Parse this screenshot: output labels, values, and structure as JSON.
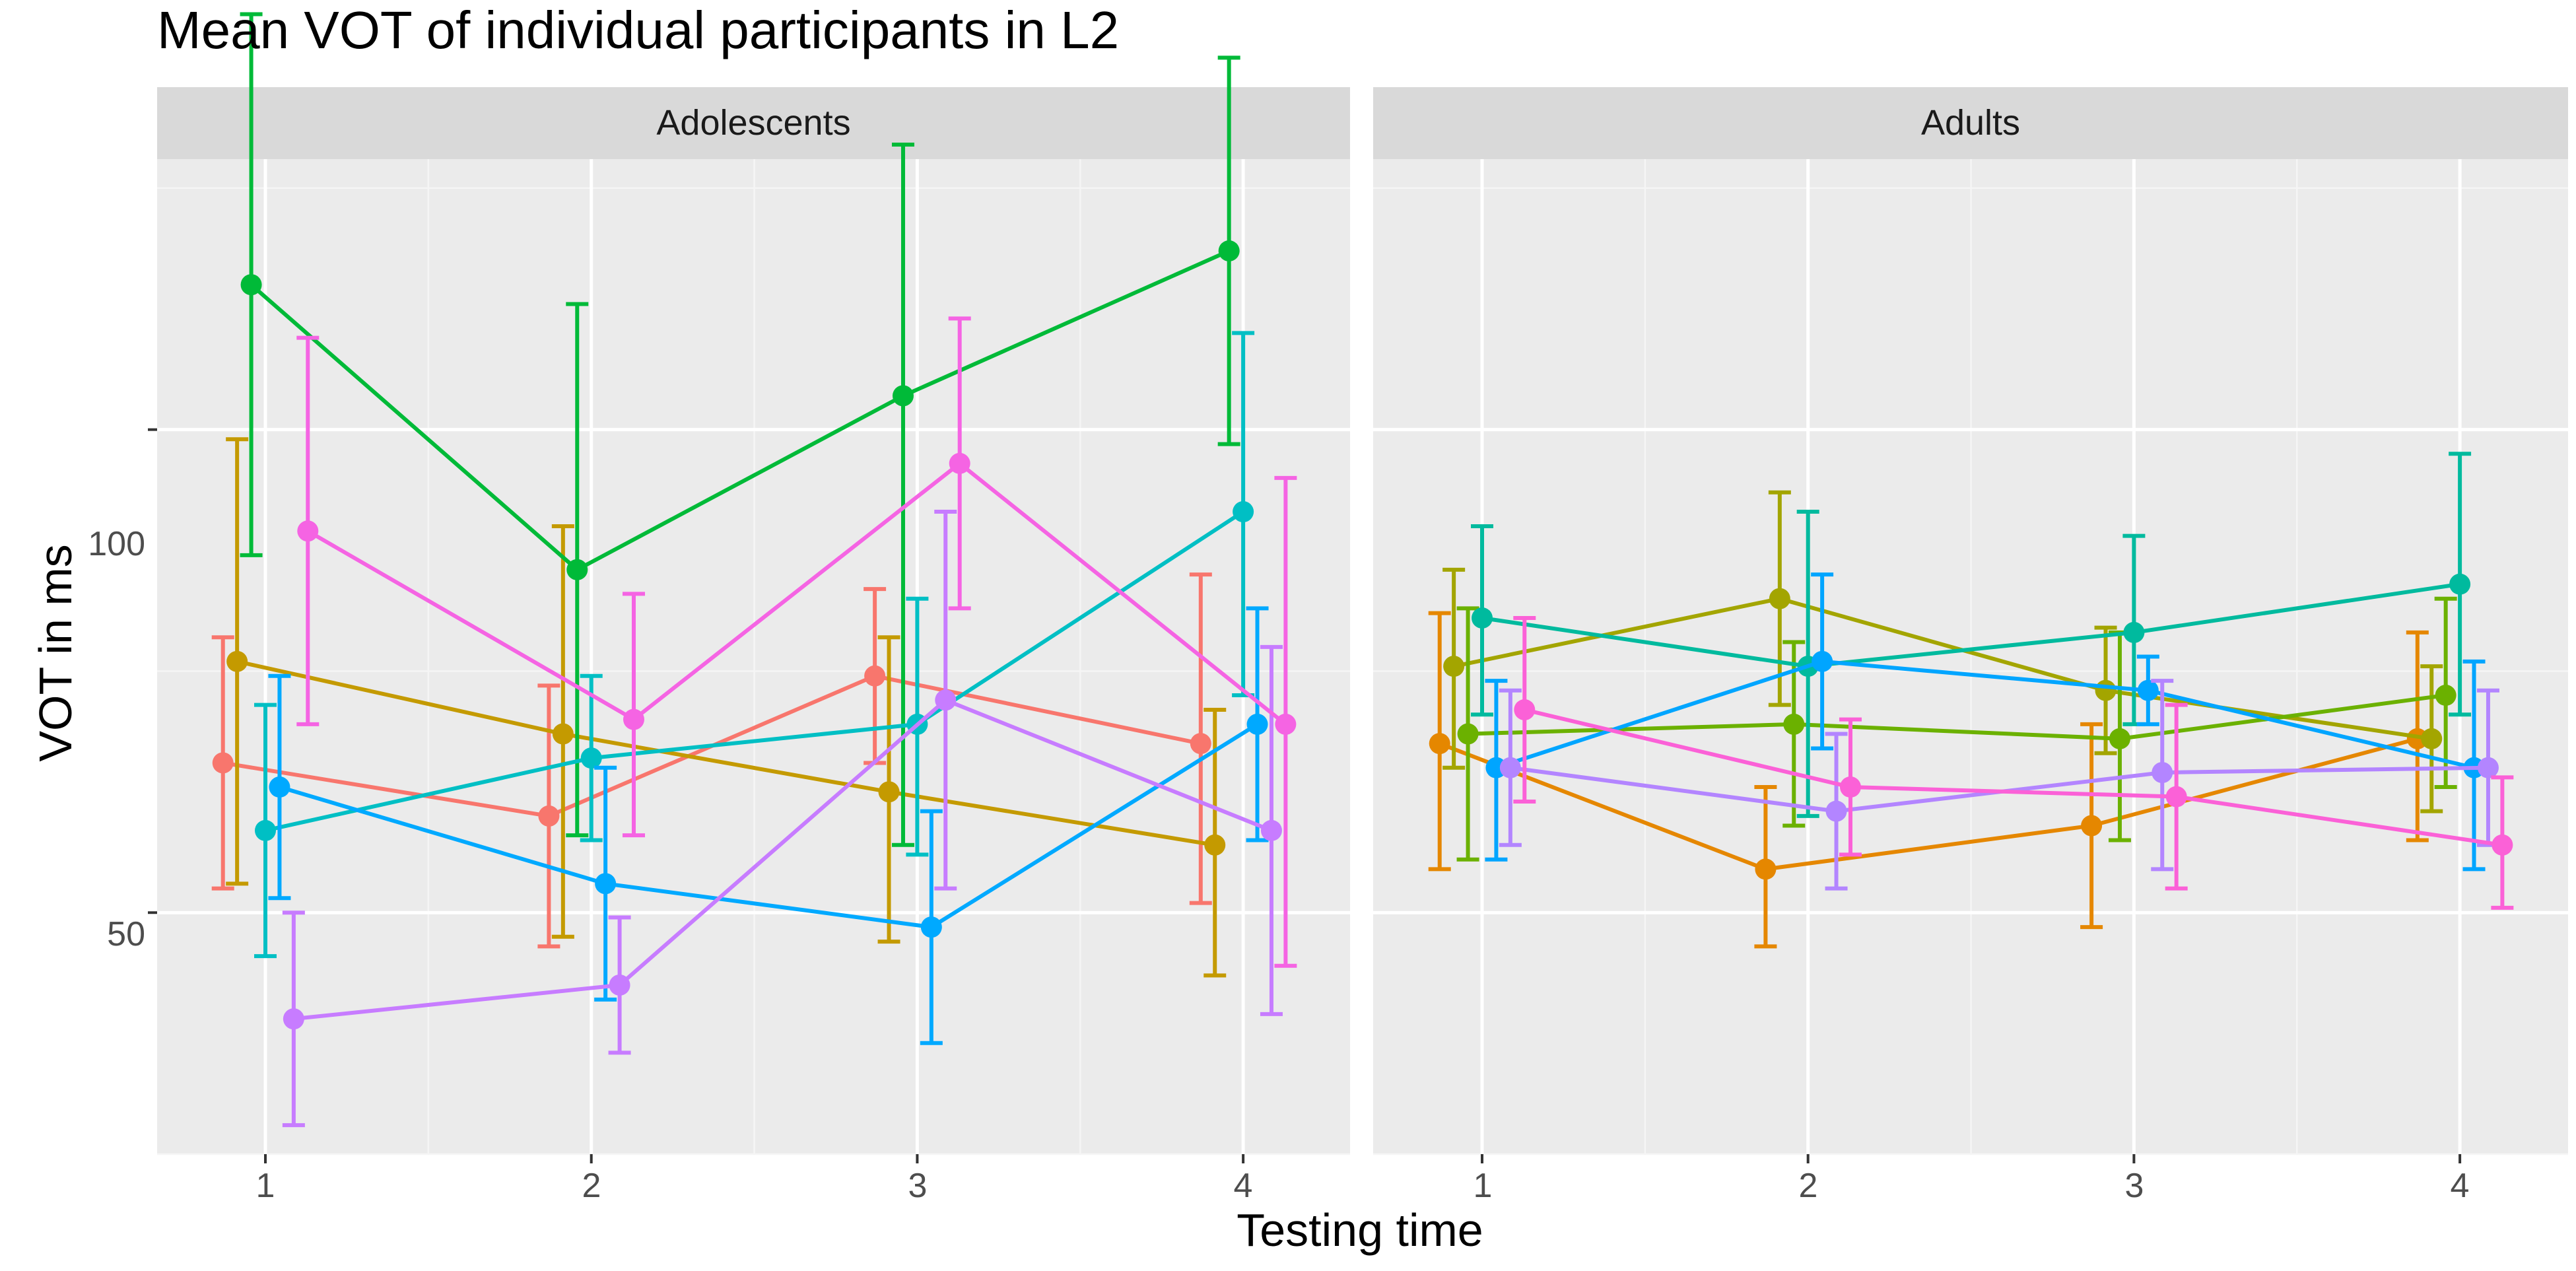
{
  "chart_data": {
    "type": "line",
    "title": "Mean VOT of individual participants in L2",
    "xlabel": "Testing time",
    "ylabel": "VOT in ms",
    "x": [
      1,
      2,
      3,
      4
    ],
    "xticks": [
      "1",
      "2",
      "3",
      "4"
    ],
    "ylim": [
      25,
      128
    ],
    "yticks": [
      50,
      100
    ],
    "grid": true,
    "legend": "none",
    "facets": [
      {
        "label": "Adolescents",
        "series": [
          {
            "color": "#F8766D",
            "values": [
              65.5,
              60.0,
              74.5,
              67.5
            ],
            "lower": [
              52.5,
              46.5,
              65.5,
              51.0
            ],
            "upper": [
              78.5,
              73.5,
              83.5,
              85.0
            ]
          },
          {
            "color": "#C49A00",
            "values": [
              76.0,
              68.5,
              62.5,
              57.0
            ],
            "lower": [
              53.0,
              47.5,
              47.0,
              43.5
            ],
            "upper": [
              99.0,
              90.0,
              78.5,
              71.0
            ]
          },
          {
            "color": "#00BA38",
            "values": [
              115.0,
              85.5,
              103.5,
              118.5
            ],
            "lower": [
              87.0,
              58.0,
              57.0,
              98.5
            ],
            "upper": [
              143.0,
              113.0,
              129.5,
              138.5
            ]
          },
          {
            "color": "#00BFC4",
            "values": [
              58.5,
              66.0,
              69.5,
              91.5
            ],
            "lower": [
              45.5,
              57.5,
              56.0,
              72.5
            ],
            "upper": [
              71.5,
              74.5,
              82.5,
              110.0
            ]
          },
          {
            "color": "#00A9FF",
            "values": [
              63.0,
              53.0,
              48.5,
              69.5
            ],
            "lower": [
              51.5,
              41.0,
              36.5,
              57.5
            ],
            "upper": [
              74.5,
              65.0,
              60.5,
              81.5
            ]
          },
          {
            "color": "#C77CFF",
            "values": [
              39.0,
              42.5,
              72.0,
              58.5
            ],
            "lower": [
              28.0,
              35.5,
              52.5,
              39.5
            ],
            "upper": [
              50.0,
              49.5,
              91.5,
              77.5
            ]
          },
          {
            "color": "#F564E3",
            "values": [
              89.5,
              70.0,
              96.5,
              69.5
            ],
            "lower": [
              69.5,
              58.0,
              81.5,
              44.5
            ],
            "upper": [
              109.5,
              83.0,
              111.5,
              95.0
            ]
          }
        ]
      },
      {
        "label": "Adults",
        "series": [
          {
            "color": "#E58700",
            "values": [
              67.5,
              54.5,
              59.0,
              68.0
            ],
            "lower": [
              54.5,
              46.5,
              48.5,
              57.5
            ],
            "upper": [
              81.0,
              63.0,
              69.5,
              79.0
            ]
          },
          {
            "color": "#A3A500",
            "values": [
              75.5,
              82.5,
              73.0,
              68.0
            ],
            "lower": [
              65.0,
              71.5,
              66.5,
              60.5
            ],
            "upper": [
              85.5,
              93.5,
              79.5,
              75.5
            ]
          },
          {
            "color": "#6BB100",
            "values": [
              68.5,
              69.5,
              68.0,
              72.5
            ],
            "lower": [
              55.5,
              59.0,
              57.5,
              63.0
            ],
            "upper": [
              81.5,
              78.0,
              79.0,
              82.5
            ]
          },
          {
            "color": "#00BA9E",
            "values": [
              80.5,
              75.5,
              79.0,
              84.0
            ],
            "lower": [
              70.5,
              60.0,
              69.5,
              70.5
            ],
            "upper": [
              90.0,
              91.5,
              89.0,
              97.5
            ]
          },
          {
            "color": "#00A5FF",
            "values": [
              65.0,
              76.0,
              73.0,
              65.0
            ],
            "lower": [
              55.5,
              67.0,
              69.5,
              54.5
            ],
            "upper": [
              74.0,
              85.0,
              76.5,
              76.0
            ]
          },
          {
            "color": "#B385FF",
            "values": [
              65.0,
              60.5,
              64.5,
              65.0
            ],
            "lower": [
              57.0,
              52.5,
              54.5,
              57.0
            ],
            "upper": [
              73.0,
              68.5,
              74.0,
              73.0
            ]
          },
          {
            "color": "#FB61D7",
            "values": [
              71.0,
              63.0,
              62.0,
              57.0
            ],
            "lower": [
              61.5,
              56.0,
              52.5,
              50.5
            ],
            "upper": [
              80.5,
              70.0,
              71.5,
              64.0
            ]
          }
        ]
      }
    ]
  }
}
